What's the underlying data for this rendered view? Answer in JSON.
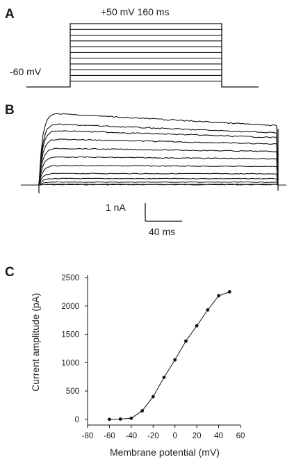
{
  "panels": {
    "a": "A",
    "b": "B",
    "c": "C"
  },
  "protocol": {
    "step_label": "+50 mV  160 ms",
    "holding_label": "-60 mV",
    "steps_mV": [
      -50,
      -40,
      -30,
      -20,
      -10,
      0,
      10,
      20,
      30,
      40,
      50
    ]
  },
  "traces": {
    "scalebar_current": "1 nA",
    "scalebar_time": "40 ms",
    "peak_nA": [
      0.01,
      0.02,
      0.08,
      0.18,
      0.32,
      0.54,
      0.78,
      1.02,
      1.28,
      1.52,
      1.7,
      2.0
    ]
  },
  "chart_data": {
    "type": "line",
    "xlabel": "Membrane potential (mV)",
    "ylabel": "Current amplitude (pA)",
    "xlim": [
      -80,
      60
    ],
    "ylim": [
      -100,
      2550
    ],
    "xticks": [
      -80,
      -60,
      -40,
      -20,
      0,
      20,
      40,
      60
    ],
    "yticks": [
      0,
      500,
      1000,
      1500,
      2000,
      2500
    ],
    "grid": false,
    "series": [
      {
        "x": [
          -60,
          -50,
          -40,
          -30,
          -20,
          -10,
          0,
          10,
          20,
          30,
          40,
          50
        ],
        "y": [
          0,
          5,
          20,
          150,
          400,
          740,
          1050,
          1380,
          1650,
          1930,
          2180,
          2250
        ]
      }
    ]
  }
}
